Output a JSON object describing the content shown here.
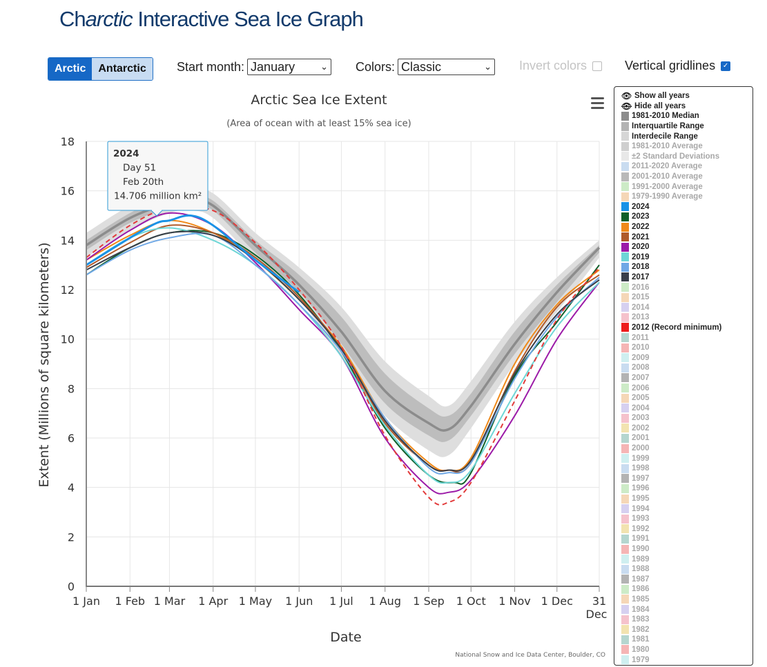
{
  "page": {
    "title_pre": "Ch",
    "title_ital": "arctic",
    "title_post": " Interactive Sea Ice Graph",
    "toggle": [
      "Arctic",
      "Antarctic"
    ],
    "start_month_label": "Start month:",
    "start_month": "January",
    "colors_label": "Colors:",
    "colors_value": "Classic",
    "invert_label": "Invert colors",
    "gridlines_label": "Vertical gridlines",
    "menu_icon": "hamburger-menu-icon"
  },
  "legend": {
    "show_all": "Show all years",
    "hide_all": "Hide all years",
    "items": [
      {
        "label": "1981-2010 Median",
        "color": "#8c8c8c",
        "on": true
      },
      {
        "label": "Interquartile Range",
        "color": "#b3b3b3",
        "on": true
      },
      {
        "label": "Interdecile Range",
        "color": "#d6d6d6",
        "on": true
      },
      {
        "label": "1981-2010 Average",
        "color": "#cfcfcf",
        "on": false
      },
      {
        "label": "±2 Standard Deviations",
        "color": "#e8e8e8",
        "on": false
      },
      {
        "label": "2011-2020 Average",
        "color": "#c9dcf0",
        "on": false
      },
      {
        "label": "2001-2010 Average",
        "color": "#b9b9b9",
        "on": false
      },
      {
        "label": "1991-2000 Average",
        "color": "#cdebc7",
        "on": false
      },
      {
        "label": "1979-1990 Average",
        "color": "#f5d7b7",
        "on": false
      },
      {
        "label": "2024",
        "color": "#1a92e6",
        "on": true
      },
      {
        "label": "2023",
        "color": "#0f5f2a",
        "on": true
      },
      {
        "label": "2022",
        "color": "#f08a1a",
        "on": true
      },
      {
        "label": "2021",
        "color": "#b05a2a",
        "on": true
      },
      {
        "label": "2020",
        "color": "#9c1ba8",
        "on": true
      },
      {
        "label": "2019",
        "color": "#6ed6d6",
        "on": true
      },
      {
        "label": "2018",
        "color": "#6fa8e6",
        "on": true
      },
      {
        "label": "2017",
        "color": "#3a3f4a",
        "on": true
      },
      {
        "label": "2016",
        "color": "#cdebc7",
        "on": false
      },
      {
        "label": "2015",
        "color": "#f5d7b7",
        "on": false
      },
      {
        "label": "2014",
        "color": "#d6d0f0",
        "on": false
      },
      {
        "label": "2013",
        "color": "#f5c2cc",
        "on": false
      },
      {
        "label": "2012 (Record minimum)",
        "color": "#ee1c1c",
        "on": true
      },
      {
        "label": "2011",
        "color": "#b5d6cf",
        "on": false
      },
      {
        "label": "2010",
        "color": "#f5b5b5",
        "on": false
      },
      {
        "label": "2009",
        "color": "#cfeff0",
        "on": false
      },
      {
        "label": "2008",
        "color": "#c9dcf0",
        "on": false
      },
      {
        "label": "2007",
        "color": "#b3b3b3",
        "on": false
      },
      {
        "label": "2006",
        "color": "#cdebc7",
        "on": false
      },
      {
        "label": "2005",
        "color": "#f5d7b7",
        "on": false
      },
      {
        "label": "2004",
        "color": "#d6d0f0",
        "on": false
      },
      {
        "label": "2003",
        "color": "#f5c2cc",
        "on": false
      },
      {
        "label": "2002",
        "color": "#f2e3b0",
        "on": false
      },
      {
        "label": "2001",
        "color": "#b5d6cf",
        "on": false
      },
      {
        "label": "2000",
        "color": "#f5b5b5",
        "on": false
      },
      {
        "label": "1999",
        "color": "#cfeff0",
        "on": false
      },
      {
        "label": "1998",
        "color": "#c9dcf0",
        "on": false
      },
      {
        "label": "1997",
        "color": "#b3b3b3",
        "on": false
      },
      {
        "label": "1996",
        "color": "#cdebc7",
        "on": false
      },
      {
        "label": "1995",
        "color": "#f5d7b7",
        "on": false
      },
      {
        "label": "1994",
        "color": "#d6d0f0",
        "on": false
      },
      {
        "label": "1993",
        "color": "#f5c2cc",
        "on": false
      },
      {
        "label": "1992",
        "color": "#f2e3b0",
        "on": false
      },
      {
        "label": "1991",
        "color": "#b5d6cf",
        "on": false
      },
      {
        "label": "1990",
        "color": "#f5b5b5",
        "on": false
      },
      {
        "label": "1989",
        "color": "#cfeff0",
        "on": false
      },
      {
        "label": "1988",
        "color": "#c9dcf0",
        "on": false
      },
      {
        "label": "1987",
        "color": "#b3b3b3",
        "on": false
      },
      {
        "label": "1986",
        "color": "#cdebc7",
        "on": false
      },
      {
        "label": "1985",
        "color": "#f5d7b7",
        "on": false
      },
      {
        "label": "1984",
        "color": "#d6d0f0",
        "on": false
      },
      {
        "label": "1983",
        "color": "#f5c2cc",
        "on": false
      },
      {
        "label": "1982",
        "color": "#f2e3b0",
        "on": false
      },
      {
        "label": "1981",
        "color": "#b5d6cf",
        "on": false
      },
      {
        "label": "1980",
        "color": "#f5b5b5",
        "on": false
      },
      {
        "label": "1979",
        "color": "#cfeff0",
        "on": false
      }
    ]
  },
  "chart_data": {
    "type": "line",
    "title": "Arctic Sea Ice Extent",
    "subtitle": "(Area of ocean with at least 15% sea ice)",
    "xlabel": "Date",
    "ylabel": "Extent (Millions of square kilometers)",
    "xlim": [
      1,
      365
    ],
    "ylim": [
      0,
      18
    ],
    "yticks": [
      0,
      2,
      4,
      6,
      8,
      10,
      12,
      14,
      16,
      18
    ],
    "xticks": [
      {
        "day": 1,
        "label": "1 Jan"
      },
      {
        "day": 32,
        "label": "1 Feb"
      },
      {
        "day": 60,
        "label": "1 Mar"
      },
      {
        "day": 91,
        "label": "1 Apr"
      },
      {
        "day": 121,
        "label": "1 May"
      },
      {
        "day": 152,
        "label": "1 Jun"
      },
      {
        "day": 182,
        "label": "1 Jul"
      },
      {
        "day": 213,
        "label": "1 Aug"
      },
      {
        "day": 244,
        "label": "1 Sep"
      },
      {
        "day": 274,
        "label": "1 Oct"
      },
      {
        "day": 305,
        "label": "1 Nov"
      },
      {
        "day": 335,
        "label": "1 Dec"
      },
      {
        "day": 365,
        "label": "31 Dec"
      }
    ],
    "vertical_gridlines": true,
    "credit": "National Snow and Ice Data Center, Boulder, CO",
    "tooltip": {
      "series": "2024",
      "day": "Day 51",
      "date": "Feb 20th",
      "value": "14.706 million km²",
      "x": 51,
      "y": 14.706
    },
    "interdecile": {
      "x": [
        1,
        32,
        60,
        75,
        91,
        121,
        152,
        182,
        213,
        244,
        258,
        274,
        305,
        335,
        365
      ],
      "upper": [
        14.3,
        15.4,
        16.0,
        16.0,
        15.9,
        14.3,
        12.9,
        11.3,
        9.1,
        7.7,
        7.3,
        8.3,
        10.7,
        12.5,
        14.0
      ],
      "lower": [
        13.3,
        14.4,
        15.1,
        15.2,
        14.9,
        13.2,
        11.6,
        9.3,
        6.9,
        5.5,
        5.3,
        6.4,
        9.0,
        11.1,
        13.3
      ]
    },
    "interquartile": {
      "x": [
        1,
        32,
        60,
        75,
        91,
        121,
        152,
        182,
        213,
        244,
        258,
        274,
        305,
        335,
        365
      ],
      "upper": [
        14.0,
        15.1,
        15.8,
        15.8,
        15.6,
        14.0,
        12.6,
        10.9,
        8.6,
        7.2,
        6.9,
        7.8,
        10.3,
        12.2,
        13.8
      ],
      "lower": [
        13.6,
        14.7,
        15.3,
        15.4,
        15.2,
        13.5,
        11.9,
        9.8,
        7.4,
        6.1,
        5.9,
        6.9,
        9.4,
        11.5,
        13.5
      ]
    },
    "median": {
      "x": [
        1,
        32,
        60,
        75,
        91,
        121,
        152,
        182,
        213,
        244,
        258,
        274,
        305,
        335,
        365
      ],
      "y": [
        13.8,
        14.9,
        15.5,
        15.6,
        15.4,
        13.8,
        12.2,
        10.3,
        7.9,
        6.6,
        6.35,
        7.3,
        9.8,
        11.9,
        13.7
      ]
    },
    "series": [
      {
        "name": "2024",
        "color": "#1a92e6",
        "x": [
          1,
          32,
          51,
          60,
          75,
          91,
          121,
          152
        ],
        "y": [
          13.0,
          14.1,
          14.7,
          14.8,
          15.0,
          14.6,
          13.2,
          11.9
        ],
        "width": 3
      },
      {
        "name": "2023",
        "color": "#0f5f2a",
        "x": [
          1,
          32,
          60,
          91,
          121,
          152,
          182,
          213,
          244,
          262,
          274,
          305,
          335,
          365
        ],
        "y": [
          12.6,
          13.7,
          14.3,
          14.3,
          13.4,
          11.8,
          9.5,
          6.4,
          4.5,
          4.2,
          4.6,
          8.5,
          10.7,
          13.0
        ]
      },
      {
        "name": "2022",
        "color": "#f08a1a",
        "x": [
          1,
          32,
          60,
          91,
          121,
          152,
          182,
          213,
          244,
          258,
          274,
          305,
          335,
          365
        ],
        "y": [
          13.2,
          14.2,
          14.8,
          14.3,
          13.2,
          11.6,
          9.7,
          6.8,
          5.0,
          4.7,
          5.2,
          9.0,
          11.4,
          12.8
        ]
      },
      {
        "name": "2021",
        "color": "#b05a2a",
        "x": [
          1,
          32,
          60,
          91,
          121,
          152,
          182,
          213,
          244,
          258,
          274,
          305,
          335,
          365
        ],
        "y": [
          12.9,
          13.9,
          14.6,
          14.3,
          13.3,
          11.7,
          9.6,
          6.6,
          4.9,
          4.7,
          5.0,
          8.7,
          11.3,
          12.6
        ]
      },
      {
        "name": "2020",
        "color": "#9c1ba8",
        "x": [
          1,
          32,
          60,
          91,
          121,
          152,
          182,
          213,
          244,
          258,
          274,
          305,
          335,
          365
        ],
        "y": [
          13.2,
          14.4,
          15.1,
          14.6,
          13.1,
          11.2,
          9.3,
          6.0,
          4.0,
          3.8,
          4.3,
          6.9,
          10.0,
          12.3
        ]
      },
      {
        "name": "2019",
        "color": "#6ed6d6",
        "x": [
          1,
          32,
          60,
          91,
          121,
          152,
          182,
          213,
          244,
          258,
          274,
          305,
          335,
          365
        ],
        "y": [
          13.0,
          14.1,
          14.5,
          14.0,
          13.0,
          11.4,
          9.3,
          6.5,
          4.5,
          4.2,
          4.7,
          7.8,
          10.5,
          12.3
        ]
      },
      {
        "name": "2018",
        "color": "#6fa8e6",
        "x": [
          1,
          32,
          60,
          91,
          121,
          152,
          182,
          213,
          244,
          258,
          274,
          305,
          335,
          365
        ],
        "y": [
          12.6,
          13.6,
          14.1,
          14.2,
          13.0,
          11.4,
          9.5,
          6.8,
          4.8,
          4.6,
          5.0,
          8.4,
          10.9,
          12.5
        ]
      },
      {
        "name": "2017",
        "color": "#3a3f4a",
        "x": [
          1,
          32,
          60,
          91,
          121,
          152,
          182,
          213,
          244,
          258,
          274,
          305,
          335,
          365
        ],
        "y": [
          12.8,
          13.7,
          14.3,
          14.2,
          13.2,
          11.6,
          9.6,
          6.7,
          4.9,
          4.7,
          5.1,
          8.6,
          11.0,
          12.4
        ]
      },
      {
        "name": "2012",
        "color": "#e23a3a",
        "dashed": true,
        "x": [
          1,
          32,
          60,
          91,
          121,
          152,
          182,
          213,
          244,
          258,
          274,
          305,
          335,
          365
        ],
        "y": [
          13.3,
          14.6,
          15.3,
          15.2,
          13.9,
          12.0,
          9.7,
          6.1,
          3.6,
          3.4,
          4.2,
          7.5,
          10.8,
          12.9
        ]
      }
    ]
  }
}
